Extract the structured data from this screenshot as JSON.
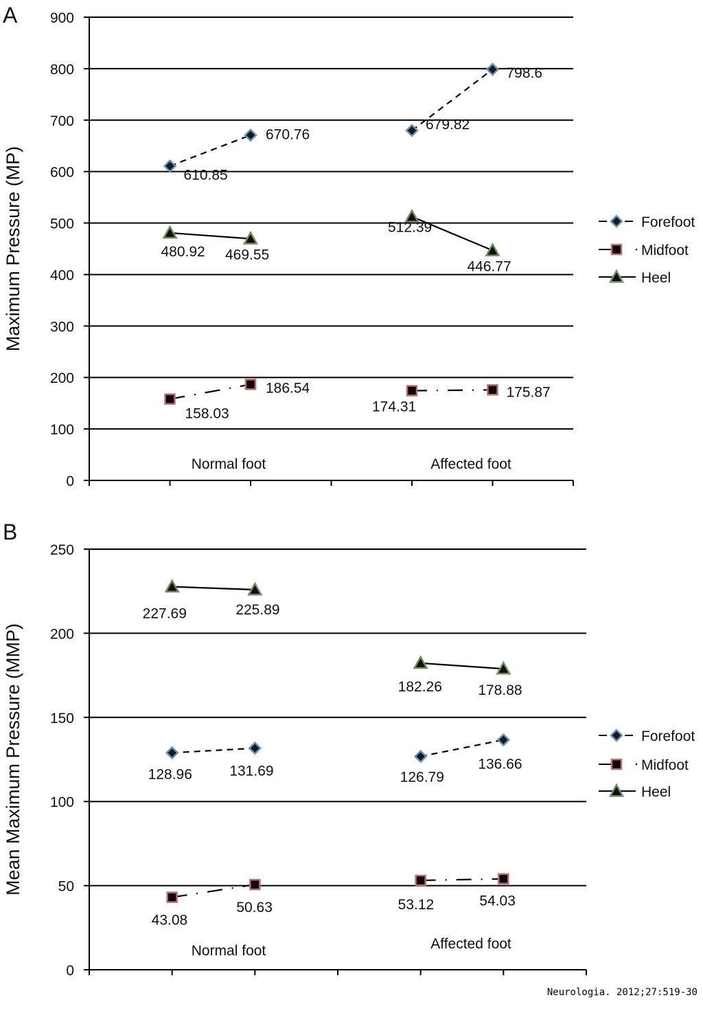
{
  "citation": "Neurologia. 2012;27:519-30",
  "legend": [
    {
      "key": "forefoot",
      "label": "Forefoot",
      "marker": "diamond-icon",
      "line": "dashed",
      "fill": "#0f1a2a",
      "stroke": "#6d95ad"
    },
    {
      "key": "midfoot",
      "label": "Midfoot",
      "marker": "square-icon",
      "line": "dash-dot",
      "fill": "#0d0506",
      "stroke": "#b8706e"
    },
    {
      "key": "heel",
      "label": "Heel",
      "marker": "triangle-icon",
      "line": "solid",
      "fill": "#0b1208",
      "stroke": "#7a8a63"
    }
  ],
  "chart_data": [
    {
      "panel_label": "A",
      "type": "line",
      "title": "",
      "xlabel": "",
      "ylabel": "Maximum Pressure (MP)",
      "ylim": [
        0,
        900
      ],
      "yticks": [
        0,
        100,
        200,
        300,
        400,
        500,
        600,
        700,
        800,
        900
      ],
      "grid": true,
      "legend_position": "right",
      "group_labels": [
        "Normal foot",
        "Affected foot"
      ],
      "series": [
        {
          "name": "Forefoot",
          "x": [
            1,
            2,
            4,
            5
          ],
          "values": [
            610.85,
            670.76,
            679.82,
            798.6
          ],
          "labels": [
            "610.85",
            "670.76",
            "679.82",
            "798.6"
          ]
        },
        {
          "name": "Midfoot",
          "x": [
            1,
            2,
            4,
            5
          ],
          "values": [
            158.03,
            186.54,
            174.31,
            175.87
          ],
          "labels": [
            "158.03",
            "186.54",
            "174.31",
            "175.87"
          ]
        },
        {
          "name": "Heel",
          "x": [
            1,
            2,
            4,
            5
          ],
          "values": [
            480.92,
            469.55,
            512.39,
            446.77
          ],
          "labels": [
            "480.92",
            "469.55",
            "512.39",
            "446.77"
          ]
        }
      ]
    },
    {
      "panel_label": "B",
      "type": "line",
      "title": "",
      "xlabel": "",
      "ylabel": "Mean Maximum Pressure (MMP)",
      "ylim": [
        0,
        250
      ],
      "yticks": [
        0,
        50,
        100,
        150,
        200,
        250
      ],
      "grid": true,
      "legend_position": "right",
      "group_labels": [
        "Normal foot",
        "Affected foot"
      ],
      "series": [
        {
          "name": "Forefoot",
          "x": [
            1,
            2,
            4,
            5
          ],
          "values": [
            128.96,
            131.69,
            126.79,
            136.66
          ],
          "labels": [
            "128.96",
            "131.69",
            "126.79",
            "136.66"
          ]
        },
        {
          "name": "Midfoot",
          "x": [
            1,
            2,
            4,
            5
          ],
          "values": [
            43.08,
            50.63,
            53.12,
            54.03
          ],
          "labels": [
            "43.08",
            "50.63",
            "53.12",
            "54.03"
          ]
        },
        {
          "name": "Heel",
          "x": [
            1,
            2,
            4,
            5
          ],
          "values": [
            227.69,
            225.89,
            182.26,
            178.88
          ],
          "labels": [
            "227.69",
            "225.89",
            "182.26",
            "178.88"
          ]
        }
      ]
    }
  ]
}
